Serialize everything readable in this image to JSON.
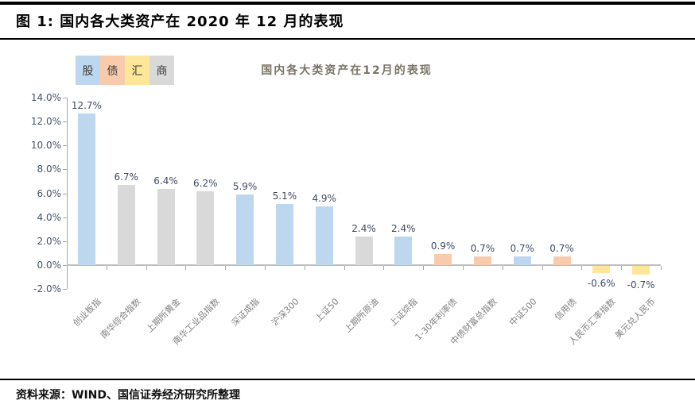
{
  "header": {
    "title": "图 1: 国内各大类资产在 2020 年 12 月的表现"
  },
  "footer": {
    "source": "资料来源：WIND、国信证券经济研究所整理"
  },
  "chart_data": {
    "type": "bar",
    "title": "国内各大类资产在12月的表现",
    "categories": [
      "创业板指",
      "南华综合指数",
      "上期所黄金",
      "南华工业品指数",
      "深证成指",
      "沪深300",
      "上证50",
      "上期所原油",
      "上证综指",
      "1-30年利率债",
      "中债财富总指数",
      "中证500",
      "信用债",
      "人民币汇率指数",
      "美元兑人民币"
    ],
    "values": [
      12.7,
      6.7,
      6.4,
      6.2,
      5.9,
      5.1,
      4.9,
      2.4,
      2.4,
      0.9,
      0.7,
      0.7,
      0.7,
      -0.6,
      -0.7
    ],
    "groups": [
      "股",
      "商",
      "商",
      "商",
      "股",
      "股",
      "股",
      "商",
      "股",
      "债",
      "债",
      "股",
      "债",
      "汇",
      "汇"
    ],
    "data_labels": [
      "12.7%",
      "6.7%",
      "6.4%",
      "6.2%",
      "5.9%",
      "5.1%",
      "4.9%",
      "2.4%",
      "2.4%",
      "0.9%",
      "0.7%",
      "0.7%",
      "0.7%",
      "-0.6%",
      "-0.7%"
    ],
    "ylim": [
      -2,
      14
    ],
    "ytick_step": 2,
    "ytick_labels": [
      "14.0%",
      "12.0%",
      "10.0%",
      "8.0%",
      "6.0%",
      "4.0%",
      "2.0%",
      "0.0%",
      "-2.0%"
    ],
    "grid": "off",
    "legend_position": "top-left",
    "legend": [
      {
        "label": "股",
        "color": "#BDD7EE"
      },
      {
        "label": "债",
        "color": "#F8CBAD"
      },
      {
        "label": "汇",
        "color": "#FFE699"
      },
      {
        "label": "商",
        "color": "#D9D9D9"
      }
    ],
    "colors": {
      "股": "#BDD7EE",
      "债": "#F8CBAD",
      "汇": "#FFE699",
      "商": "#D9D9D9"
    }
  }
}
